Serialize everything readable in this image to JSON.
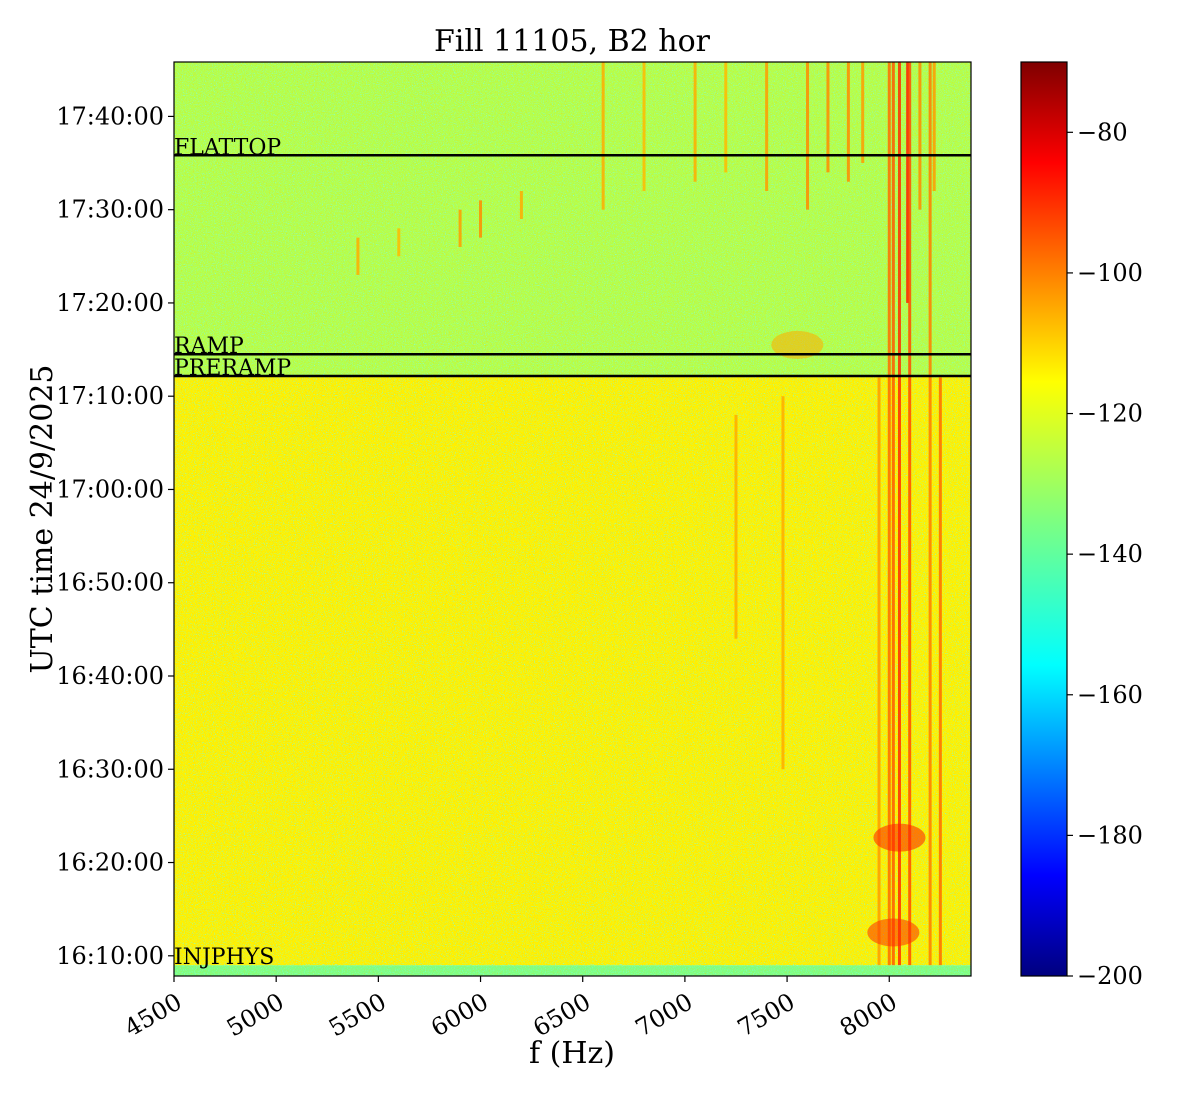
{
  "chart_data": {
    "type": "heatmap",
    "title": "Fill 11105, B2 hor",
    "xlabel": "f (Hz)",
    "ylabel": "UTC time 24/9/2025",
    "xlim": [
      4500,
      8400
    ],
    "ylim": [
      "16:07:50",
      "17:45:50"
    ],
    "x_ticks": [
      4500,
      5000,
      5500,
      6000,
      6500,
      7000,
      7500,
      8000
    ],
    "x_tick_labels": [
      "4500",
      "5000",
      "5500",
      "6000",
      "6500",
      "7000",
      "7500",
      "8000"
    ],
    "y_ticks": [
      "16:10:00",
      "16:20:00",
      "16:30:00",
      "16:40:00",
      "16:50:00",
      "17:00:00",
      "17:10:00",
      "17:20:00",
      "17:30:00",
      "17:40:00"
    ],
    "colorbar": {
      "colormap": "jet",
      "min": -200,
      "max": -70,
      "ticks": [
        -80,
        -100,
        -120,
        -140,
        -160,
        -180,
        -200
      ],
      "tick_labels": [
        "−80",
        "−100",
        "−120",
        "−140",
        "−160",
        "−180",
        "−200"
      ]
    },
    "phases": [
      {
        "name": "FLATTOP",
        "time": "17:35:50"
      },
      {
        "name": "RAMP",
        "time": "17:14:30"
      },
      {
        "name": "PRERAMP",
        "time": "17:12:10"
      },
      {
        "name": "INJPHYS",
        "time": "16:09:00"
      }
    ],
    "regions": [
      {
        "t_start": "16:07:50",
        "t_end": "16:09:00",
        "level": -135
      },
      {
        "t_start": "16:09:00",
        "t_end": "17:12:10",
        "level": -117
      },
      {
        "t_start": "17:12:10",
        "t_end": "17:45:50",
        "level": -128
      }
    ],
    "spectral_lines": [
      {
        "f": 7250,
        "t_start": "16:44:00",
        "t_end": "17:08:00",
        "level": -108
      },
      {
        "f": 7480,
        "t_start": "16:30:00",
        "t_end": "17:10:00",
        "level": -108
      },
      {
        "f": 7950,
        "t_start": "16:09:00",
        "t_end": "17:12:00",
        "level": -106
      },
      {
        "f": 8000,
        "t_start": "16:09:00",
        "t_end": "17:45:50",
        "level": -100
      },
      {
        "f": 8020,
        "t_start": "16:09:00",
        "t_end": "17:45:50",
        "level": -98
      },
      {
        "f": 8050,
        "t_start": "16:09:00",
        "t_end": "17:45:50",
        "level": -92
      },
      {
        "f": 8090,
        "t_start": "17:20:00",
        "t_end": "17:45:50",
        "level": -90
      },
      {
        "f": 8100,
        "t_start": "16:09:00",
        "t_end": "17:45:50",
        "level": -96
      },
      {
        "f": 8200,
        "t_start": "16:09:00",
        "t_end": "17:45:50",
        "level": -102
      },
      {
        "f": 8250,
        "t_start": "16:09:00",
        "t_end": "17:12:00",
        "level": -100
      },
      {
        "f": 6600,
        "t_start": "17:30:00",
        "t_end": "17:45:50",
        "level": -108
      },
      {
        "f": 6800,
        "t_start": "17:32:00",
        "t_end": "17:45:50",
        "level": -110
      },
      {
        "f": 7050,
        "t_start": "17:33:00",
        "t_end": "17:45:50",
        "level": -108
      },
      {
        "f": 7200,
        "t_start": "17:34:00",
        "t_end": "17:45:50",
        "level": -110
      },
      {
        "f": 7400,
        "t_start": "17:32:00",
        "t_end": "17:45:50",
        "level": -106
      },
      {
        "f": 7600,
        "t_start": "17:30:00",
        "t_end": "17:45:50",
        "level": -104
      },
      {
        "f": 7700,
        "t_start": "17:34:00",
        "t_end": "17:45:50",
        "level": -104
      },
      {
        "f": 7800,
        "t_start": "17:33:00",
        "t_end": "17:45:50",
        "level": -104
      },
      {
        "f": 7870,
        "t_start": "17:35:00",
        "t_end": "17:45:50",
        "level": -106
      },
      {
        "f": 8150,
        "t_start": "17:30:00",
        "t_end": "17:45:50",
        "level": -104
      },
      {
        "f": 8220,
        "t_start": "17:32:00",
        "t_end": "17:45:50",
        "level": -106
      },
      {
        "f": 5400,
        "t_start": "17:23:00",
        "t_end": "17:27:00",
        "level": -108
      },
      {
        "f": 5600,
        "t_start": "17:25:00",
        "t_end": "17:28:00",
        "level": -110
      },
      {
        "f": 5900,
        "t_start": "17:26:00",
        "t_end": "17:30:00",
        "level": -106
      },
      {
        "f": 6000,
        "t_start": "17:27:00",
        "t_end": "17:31:00",
        "level": -104
      },
      {
        "f": 6200,
        "t_start": "17:29:00",
        "t_end": "17:32:00",
        "level": -108
      }
    ],
    "hotspots": [
      {
        "f": 8020,
        "t": "16:12:30",
        "level": -92
      },
      {
        "f": 8050,
        "t": "16:22:40",
        "level": -90
      },
      {
        "f": 7550,
        "t": "17:15:30",
        "level": -108
      }
    ]
  }
}
